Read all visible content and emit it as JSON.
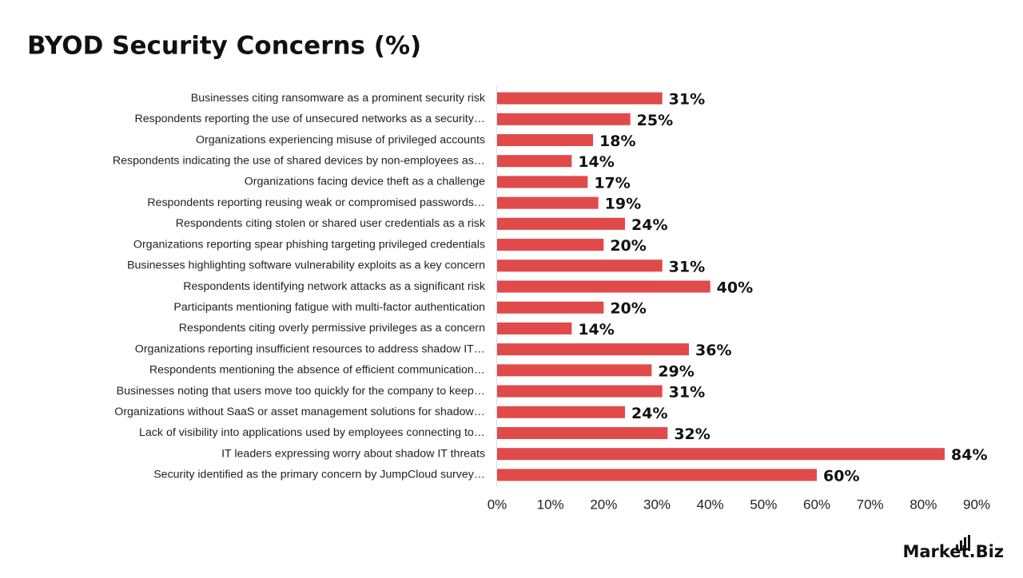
{
  "chart_data": {
    "type": "barh",
    "title": "BYOD Security Concerns (%)",
    "categories": [
      "Businesses citing ransomware as a prominent security risk",
      "Respondents reporting the use of unsecured networks as a security…",
      "Organizations experiencing misuse of privileged accounts",
      "Respondents indicating the use of shared devices by non-employees as…",
      "Organizations facing device theft as a challenge",
      "Respondents reporting reusing weak or compromised passwords…",
      "Respondents citing stolen or shared user credentials as a risk",
      "Organizations reporting spear phishing targeting privileged credentials",
      "Businesses highlighting software vulnerability exploits as a key concern",
      "Respondents identifying network attacks as a significant risk",
      "Participants mentioning fatigue with multi-factor authentication",
      "Respondents citing overly permissive privileges as a concern",
      "Organizations reporting insufficient resources to address shadow IT…",
      "Respondents mentioning the absence of efficient communication…",
      "Businesses noting that users move too quickly for the company to keep…",
      "Organizations without SaaS or asset management solutions for shadow…",
      "Lack of visibility into applications used by employees connecting to…",
      "IT leaders expressing worry about shadow IT threats",
      "Security identified as the primary concern by JumpCloud survey…"
    ],
    "values": [
      31,
      25,
      18,
      14,
      17,
      19,
      24,
      20,
      31,
      40,
      20,
      14,
      36,
      29,
      31,
      24,
      32,
      84,
      60
    ],
    "value_labels": [
      "31%",
      "25%",
      "18%",
      "14%",
      "17%",
      "19%",
      "24%",
      "20%",
      "31%",
      "40%",
      "20%",
      "14%",
      "36%",
      "29%",
      "31%",
      "24%",
      "32%",
      "84%",
      "60%"
    ],
    "color": "#e04a4a",
    "xlim": [
      0,
      90
    ],
    "xticks": [
      {
        "value": 0,
        "label": "0%"
      },
      {
        "value": 10,
        "label": "10%"
      },
      {
        "value": 20,
        "label": "20%"
      },
      {
        "value": 30,
        "label": "30%"
      },
      {
        "value": 40,
        "label": "40%"
      },
      {
        "value": 50,
        "label": "50%"
      },
      {
        "value": 60,
        "label": "60%"
      },
      {
        "value": 70,
        "label": "70%"
      },
      {
        "value": 80,
        "label": "80%"
      },
      {
        "value": 90,
        "label": "90%"
      }
    ],
    "grid": false
  },
  "logo": "Market.Biz"
}
